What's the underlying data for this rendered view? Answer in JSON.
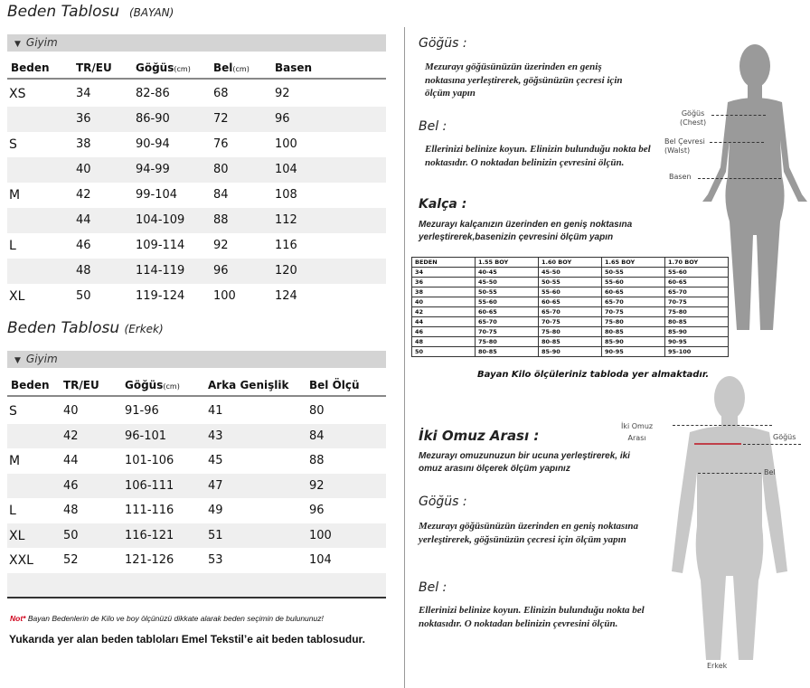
{
  "women": {
    "title": "Beden Tablosu",
    "subtitle": "(BAYAN)",
    "section": "Giyim",
    "headers": [
      "Beden",
      "TR/EU",
      "Göğüs",
      "Bel",
      "Basen"
    ],
    "unit": "(cm)",
    "rows": [
      [
        "XS",
        "34",
        "82-86",
        "68",
        "92"
      ],
      [
        "",
        "36",
        "86-90",
        "72",
        "96"
      ],
      [
        "S",
        "38",
        "90-94",
        "76",
        "100"
      ],
      [
        "",
        "40",
        "94-99",
        "80",
        "104"
      ],
      [
        "M",
        "42",
        "99-104",
        "84",
        "108"
      ],
      [
        "",
        "44",
        "104-109",
        "88",
        "112"
      ],
      [
        "L",
        "46",
        "109-114",
        "92",
        "116"
      ],
      [
        "",
        "48",
        "114-119",
        "96",
        "120"
      ],
      [
        "XL",
        "50",
        "119-124",
        "100",
        "124"
      ]
    ]
  },
  "men": {
    "title": "Beden Tablosu",
    "subtitle": "(Erkek)",
    "section": "Giyim",
    "headers": [
      "Beden",
      "TR/EU",
      "Göğüs",
      "Arka Genişlik",
      "Bel Ölçü"
    ],
    "unit": "(cm)",
    "rows": [
      [
        "S",
        "40",
        "91-96",
        "41",
        "80"
      ],
      [
        "",
        "42",
        "96-101",
        "43",
        "84"
      ],
      [
        "M",
        "44",
        "101-106",
        "45",
        "88"
      ],
      [
        "",
        "46",
        "106-111",
        "47",
        "92"
      ],
      [
        "L",
        "48",
        "111-116",
        "49",
        "96"
      ],
      [
        "XL",
        "50",
        "116-121",
        "51",
        "100"
      ],
      [
        "XXL",
        "52",
        "121-126",
        "53",
        "104"
      ]
    ]
  },
  "note": {
    "prefix": "Not*",
    "text": "Bayan Bedenlerin de Kilo ve boy ölçünüzü dikkate alarak beden seçimin de bulununuz!",
    "color": "#d0021b"
  },
  "footer": "Yukarıda yer alan beden tabloları Emel Tekstil’e ait beden tablosudur.",
  "women_guide": [
    {
      "title": "Göğüs :",
      "text": "Mezurayı göğüsünüzün üzerinden en geniş noktasına yerleştirerek, göğsünüzün çecresi için ölçüm yapın"
    },
    {
      "title": "Bel :",
      "text": "Ellerinizi belinize koyun. Elinizin bulunduğu nokta bel noktasıdır. O noktadan belinizin çevresini ölçün."
    },
    {
      "title": "Kalça :",
      "text": "Mezurayı kalçanızın üzerinden en geniş noktasına yerleştirerek,basenizin çevresini ölçüm yapın"
    }
  ],
  "kilo_table": {
    "headers": [
      "BEDEN",
      "1.55 BOY",
      "1.60 BOY",
      "1.65 BOY",
      "1.70 BOY"
    ],
    "rows": [
      [
        "34",
        "40-45",
        "45-50",
        "50-55",
        "55-60"
      ],
      [
        "36",
        "45-50",
        "50-55",
        "55-60",
        "60-65"
      ],
      [
        "38",
        "50-55",
        "55-60",
        "60-65",
        "65-70"
      ],
      [
        "40",
        "55-60",
        "60-65",
        "65-70",
        "70-75"
      ],
      [
        "42",
        "60-65",
        "65-70",
        "70-75",
        "75-80"
      ],
      [
        "44",
        "65-70",
        "70-75",
        "75-80",
        "80-85"
      ],
      [
        "46",
        "70-75",
        "75-80",
        "80-85",
        "85-90"
      ],
      [
        "48",
        "75-80",
        "80-85",
        "85-90",
        "90-95"
      ],
      [
        "50",
        "80-85",
        "85-90",
        "90-95",
        "95-100"
      ]
    ],
    "caption": "Bayan Kilo ölçüleriniz tabloda yer almaktadır."
  },
  "women_figure": {
    "chest": "Göğüs",
    "chest_en": "(Chest)",
    "waist": "Bel Çevresi",
    "waist_en": "(Walst)",
    "hip": "Basen"
  },
  "men_guide": [
    {
      "title": "İki Omuz Arası :",
      "text": "Mezurayı omuzunuzun bir ucuna yerleştirerek, iki omuz arasını ölçerek ölçüm yapınız"
    },
    {
      "title": "Göğüs :",
      "text": "Mezurayı göğüsünüzün üzerinden en geniş noktasına yerleştirerek, göğsünüzün çecresi için ölçüm yapın"
    },
    {
      "title": "Bel :",
      "text": "Ellerinizi belinize koyun. Elinizin bulunduğu nokta bel noktasıdır. O noktadan belinizin çevresini ölçün."
    }
  ],
  "men_figure": {
    "shoulder": "İki Omuz",
    "shoulder2": "Arası",
    "chest": "Göğüs",
    "waist": "Bel",
    "caption": "Erkek"
  }
}
